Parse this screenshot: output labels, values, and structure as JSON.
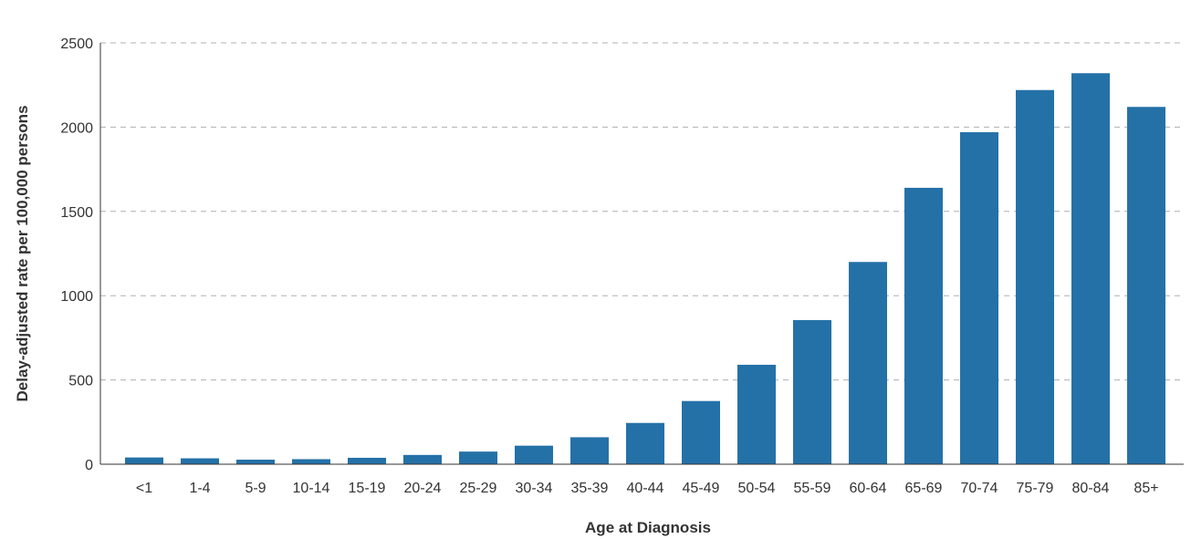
{
  "chart_data": {
    "type": "bar",
    "title": "",
    "xlabel": "Age at Diagnosis",
    "ylabel": "Delay-adjusted rate per 100,000 persons",
    "categories": [
      "<1",
      "1-4",
      "5-9",
      "10-14",
      "15-19",
      "20-24",
      "25-29",
      "30-34",
      "35-39",
      "40-44",
      "45-49",
      "50-54",
      "55-59",
      "60-64",
      "65-69",
      "70-74",
      "75-79",
      "80-84",
      "85+"
    ],
    "values": [
      40,
      35,
      27,
      30,
      38,
      55,
      75,
      110,
      160,
      245,
      375,
      590,
      855,
      1200,
      1640,
      1970,
      2220,
      2320,
      2120
    ],
    "ylim": [
      0,
      2500
    ],
    "yticks": [
      0,
      500,
      1000,
      1500,
      2000,
      2500
    ],
    "grid": "horizontal-dashed",
    "legend": "none",
    "bar_color": "#2471a8",
    "grid_color": "#b0b0b0",
    "axis_color": "#333333"
  }
}
